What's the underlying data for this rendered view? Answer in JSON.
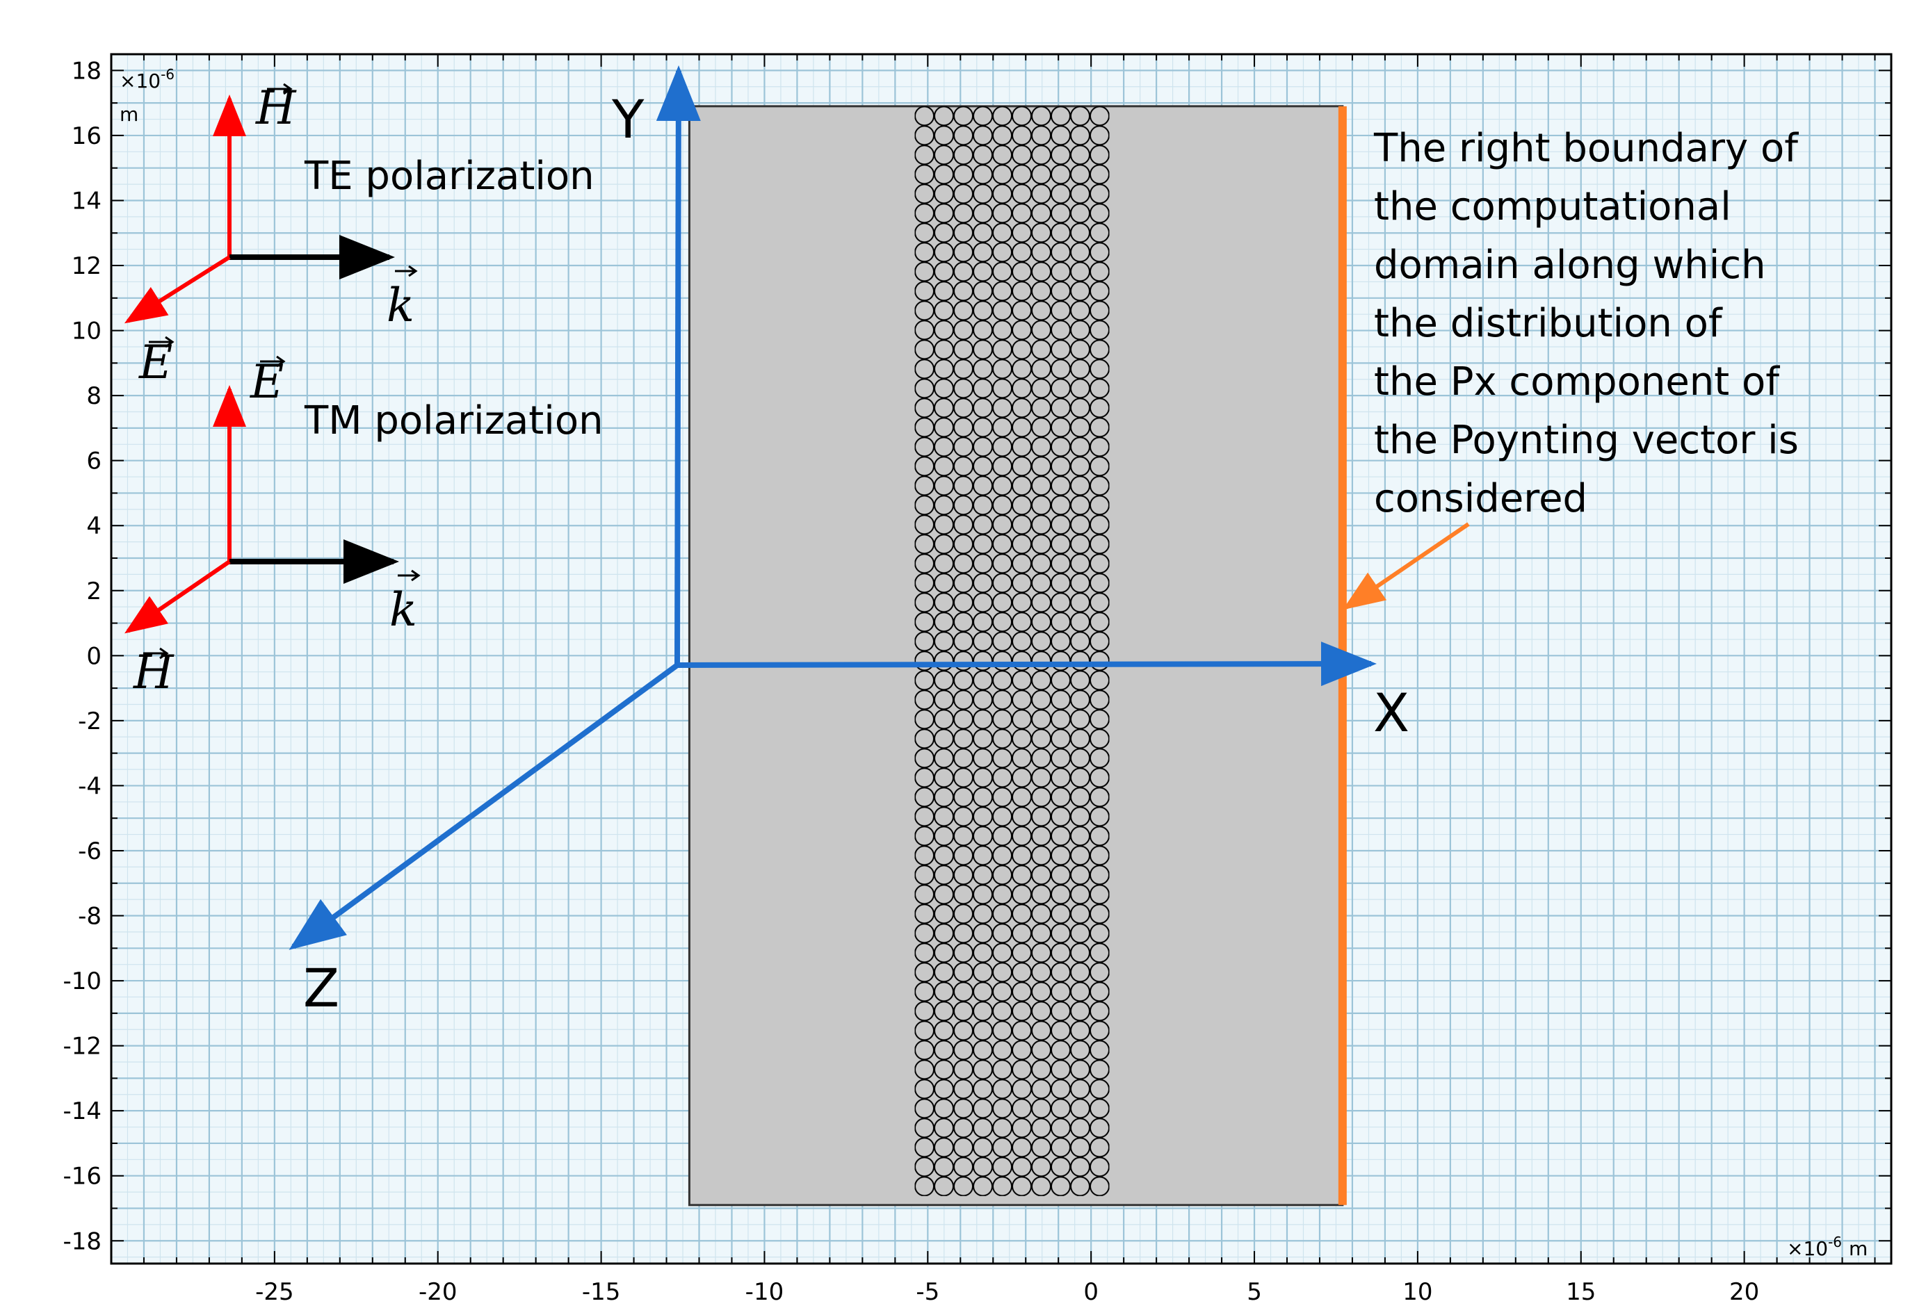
{
  "axes": {
    "x_ticks": [
      -25,
      -20,
      -15,
      -10,
      -5,
      0,
      5,
      10,
      15,
      20
    ],
    "y_ticks": [
      18,
      16,
      14,
      12,
      10,
      8,
      6,
      4,
      2,
      0,
      -2,
      -4,
      -6,
      -8,
      -10,
      -12,
      -14,
      -16,
      -18
    ],
    "x_range": [
      -30,
      24.5
    ],
    "y_range": [
      -18.7,
      18.5
    ],
    "x_unit_prefix": "×10",
    "x_unit_exp": "-6",
    "x_unit_suffix": "m",
    "y_unit_prefix": "×10",
    "y_unit_exp": "-6",
    "y_unit_suffix": "m"
  },
  "domain": {
    "x_range": [
      -12.3,
      7.7
    ],
    "y_range": [
      -16.9,
      16.9
    ],
    "fill_color": "#c8c8c8",
    "boundary_color": "#ff7f27",
    "particle_band_x": [
      -5.4,
      0.3
    ]
  },
  "axes_triad": {
    "x_label": "X",
    "y_label": "Y",
    "z_label": "Z",
    "color": "#1f6fce"
  },
  "polarizations": {
    "te": {
      "label": "TE polarization",
      "up_vector": "H",
      "diag_vector": "E",
      "right_vector": "k"
    },
    "tm": {
      "label": "TM polarization",
      "up_vector": "E",
      "diag_vector": "H",
      "right_vector": "k"
    },
    "field_color": "#ff0000",
    "k_color": "#000000"
  },
  "annotation": {
    "lines": [
      "The right boundary of",
      "the computational",
      "domain along which",
      "the distribution of",
      "the Px component of",
      "the Poynting vector is",
      "considered"
    ],
    "arrow_color": "#ff7f27"
  }
}
